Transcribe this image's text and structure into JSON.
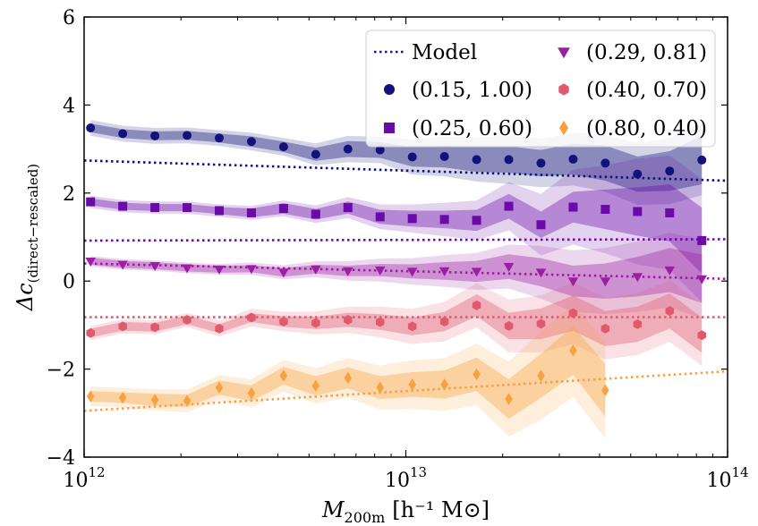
{
  "chart_data": {
    "type": "scatter",
    "title": "",
    "xscale": "log",
    "xlim": [
      1000000000000.0,
      100000000000000.0
    ],
    "ylim": [
      -4,
      6
    ],
    "xlabel": {
      "main": "M",
      "sub": "200m",
      "unit": "[h⁻¹ M⊙]"
    },
    "ylabel": {
      "main": "Δc",
      "sub": "(direct−rescaled)"
    },
    "x_ticks": [
      {
        "value": 1000000000000.0,
        "base": "10",
        "exp": "12"
      },
      {
        "value": 10000000000000.0,
        "base": "10",
        "exp": "13"
      },
      {
        "value": 100000000000000.0,
        "base": "10",
        "exp": "14"
      }
    ],
    "y_ticks": [
      {
        "value": -4,
        "label": "−4"
      },
      {
        "value": -2,
        "label": "−2"
      },
      {
        "value": 0,
        "label": "0"
      },
      {
        "value": 2,
        "label": "2"
      },
      {
        "value": 4,
        "label": "4"
      },
      {
        "value": 6,
        "label": "6"
      }
    ],
    "legend_position": "top-right",
    "model_label": "Model",
    "model_color": "#2a0f9a",
    "series": [
      {
        "name": "(0.15, 1.00)",
        "color": "#12127a",
        "marker": "circle",
        "x_log": [
          12.02,
          12.12,
          12.22,
          12.32,
          12.42,
          12.52,
          12.62,
          12.72,
          12.82,
          12.92,
          13.02,
          13.12,
          13.22,
          13.32,
          13.42,
          13.52,
          13.62,
          13.72,
          13.82,
          13.92
        ],
        "y": [
          3.48,
          3.35,
          3.3,
          3.31,
          3.25,
          3.17,
          3.05,
          2.88,
          3.0,
          2.98,
          2.82,
          2.83,
          2.76,
          2.76,
          2.68,
          2.77,
          2.68,
          2.43,
          2.5,
          2.75
        ],
        "model": [
          [
            12,
            2.74
          ],
          [
            14,
            2.28
          ]
        ],
        "band1": [
          [
            0.1,
            0.1,
            0.1,
            0.1,
            0.1,
            0.12,
            0.12,
            0.15,
            0.18,
            0.18,
            0.22,
            0.25,
            0.28,
            0.3,
            0.3,
            0.35,
            0.4,
            0.4,
            0.45,
            0.55
          ]
        ],
        "band2": [
          [
            0.18,
            0.18,
            0.18,
            0.18,
            0.18,
            0.2,
            0.2,
            0.25,
            0.3,
            0.3,
            0.4,
            0.45,
            0.5,
            0.55,
            0.55,
            0.6,
            0.65,
            0.7,
            0.75,
            0.8
          ]
        ]
      },
      {
        "name": "(0.25, 0.60)",
        "color": "#6a0aa8",
        "marker": "square",
        "x_log": [
          12.02,
          12.12,
          12.22,
          12.32,
          12.42,
          12.52,
          12.62,
          12.72,
          12.82,
          12.92,
          13.02,
          13.12,
          13.22,
          13.32,
          13.42,
          13.52,
          13.62,
          13.72,
          13.82,
          13.92
        ],
        "y": [
          1.8,
          1.7,
          1.67,
          1.67,
          1.6,
          1.55,
          1.65,
          1.52,
          1.67,
          1.46,
          1.42,
          1.4,
          1.38,
          1.7,
          1.28,
          1.68,
          1.63,
          1.58,
          1.55,
          0.92
        ],
        "model": [
          [
            12,
            0.92
          ],
          [
            14,
            0.95
          ]
        ],
        "band1": [
          [
            0.08,
            0.08,
            0.08,
            0.08,
            0.08,
            0.1,
            0.12,
            0.12,
            0.14,
            0.16,
            0.18,
            0.2,
            0.24,
            0.28,
            0.3,
            0.35,
            0.45,
            0.55,
            0.65,
            0.75
          ]
        ],
        "band2": [
          [
            0.14,
            0.14,
            0.14,
            0.14,
            0.14,
            0.16,
            0.18,
            0.2,
            0.24,
            0.28,
            0.32,
            0.38,
            0.45,
            0.55,
            0.7,
            0.85,
            1.0,
            1.2,
            1.3,
            1.4
          ]
        ]
      },
      {
        "name": "(0.29, 0.81)",
        "color": "#9b1fa3",
        "marker": "triangle-down",
        "x_log": [
          12.02,
          12.12,
          12.22,
          12.32,
          12.42,
          12.52,
          12.62,
          12.72,
          12.82,
          12.92,
          13.02,
          13.12,
          13.22,
          13.32,
          13.42,
          13.52,
          13.62,
          13.72,
          13.82,
          13.92
        ],
        "y": [
          0.45,
          0.38,
          0.35,
          0.3,
          0.27,
          0.28,
          0.2,
          0.27,
          0.23,
          0.25,
          0.22,
          0.23,
          0.22,
          0.33,
          0.2,
          0.0,
          0.0,
          0.1,
          0.25,
          0.05
        ],
        "model": [
          [
            12,
            0.4
          ],
          [
            14,
            0.05
          ]
        ],
        "band1": [
          [
            0.08,
            0.08,
            0.08,
            0.08,
            0.08,
            0.08,
            0.1,
            0.1,
            0.12,
            0.14,
            0.16,
            0.2,
            0.24,
            0.28,
            0.32,
            0.35,
            0.4,
            0.45,
            0.5,
            0.55
          ]
        ],
        "band2": [
          [
            0.12,
            0.12,
            0.12,
            0.12,
            0.12,
            0.14,
            0.16,
            0.18,
            0.22,
            0.26,
            0.3,
            0.36,
            0.42,
            0.5,
            0.6,
            0.7,
            0.75,
            0.8,
            0.85,
            0.9
          ]
        ]
      },
      {
        "name": "(0.40, 0.70)",
        "color": "#e05a6e",
        "marker": "hexagon",
        "x_log": [
          12.02,
          12.12,
          12.22,
          12.32,
          12.42,
          12.52,
          12.62,
          12.72,
          12.82,
          12.92,
          13.02,
          13.12,
          13.22,
          13.32,
          13.42,
          13.52,
          13.62,
          13.72,
          13.82,
          13.92
        ],
        "y": [
          -1.18,
          -1.03,
          -1.05,
          -0.88,
          -1.08,
          -0.83,
          -0.92,
          -0.95,
          -0.88,
          -0.93,
          -1.03,
          -0.92,
          -0.55,
          -1.02,
          -0.97,
          -0.73,
          -1.08,
          -0.98,
          -0.68,
          -1.23
        ],
        "model": [
          [
            12,
            -0.82
          ],
          [
            14,
            -0.82
          ]
        ],
        "band1": [
          [
            0.1,
            0.1,
            0.1,
            0.1,
            0.1,
            0.1,
            0.12,
            0.14,
            0.16,
            0.18,
            0.2,
            0.22,
            0.25,
            0.3,
            0.35,
            0.4,
            0.4,
            0.4,
            0.4,
            0.4
          ]
        ],
        "band2": [
          [
            0.16,
            0.16,
            0.16,
            0.16,
            0.18,
            0.2,
            0.22,
            0.26,
            0.3,
            0.35,
            0.4,
            0.45,
            0.5,
            0.6,
            0.65,
            0.7,
            0.7,
            0.7,
            0.7,
            0.7
          ]
        ]
      },
      {
        "name": "(0.80, 0.40)",
        "color": "#f7a23e",
        "marker": "diamond",
        "x_log": [
          12.02,
          12.12,
          12.22,
          12.32,
          12.42,
          12.52,
          12.62,
          12.72,
          12.82,
          12.92,
          13.02,
          13.12,
          13.22,
          13.32,
          13.42,
          13.52,
          13.62
        ],
        "y": [
          -2.62,
          -2.65,
          -2.7,
          -2.72,
          -2.42,
          -2.55,
          -2.15,
          -2.38,
          -2.2,
          -2.42,
          -2.35,
          -2.35,
          -2.12,
          -2.68,
          -2.15,
          -1.58,
          -2.48
        ],
        "model": [
          [
            12,
            -2.95
          ],
          [
            14,
            -2.05
          ]
        ],
        "band1": [
          [
            0.12,
            0.12,
            0.14,
            0.14,
            0.16,
            0.18,
            0.2,
            0.22,
            0.24,
            0.26,
            0.28,
            0.32,
            0.38,
            0.45,
            0.5,
            0.55,
            0.6
          ]
        ],
        "band2": [
          [
            0.22,
            0.22,
            0.24,
            0.26,
            0.28,
            0.32,
            0.36,
            0.4,
            0.45,
            0.5,
            0.55,
            0.6,
            0.7,
            0.85,
            1.0,
            1.05,
            1.1
          ]
        ]
      }
    ]
  }
}
